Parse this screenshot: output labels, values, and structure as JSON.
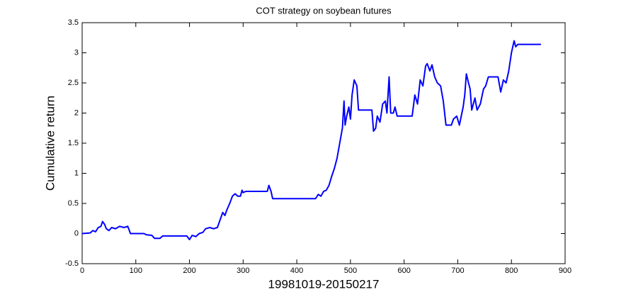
{
  "chart_data": {
    "type": "line",
    "title": "COT strategy on soybean futures",
    "x_label": "19981019-20150217",
    "y_label": "Cumulative return",
    "x": [
      0,
      15,
      20,
      25,
      30,
      35,
      38,
      42,
      45,
      50,
      55,
      62,
      70,
      78,
      85,
      88,
      90,
      115,
      120,
      130,
      135,
      145,
      150,
      195,
      200,
      205,
      212,
      218,
      225,
      230,
      238,
      245,
      252,
      258,
      262,
      266,
      270,
      275,
      280,
      285,
      290,
      295,
      298,
      300,
      305,
      345,
      348,
      352,
      355,
      435,
      440,
      445,
      450,
      455,
      460,
      465,
      470,
      475,
      480,
      485,
      488,
      490,
      493,
      497,
      500,
      503,
      507,
      512,
      515,
      540,
      543,
      547,
      550,
      555,
      560,
      565,
      568,
      572,
      575,
      580,
      583,
      587,
      615,
      620,
      625,
      630,
      635,
      640,
      643,
      648,
      652,
      657,
      662,
      668,
      673,
      678,
      688,
      692,
      698,
      703,
      710,
      713,
      716,
      720,
      723,
      726,
      732,
      736,
      742,
      748,
      752,
      757,
      775,
      780,
      785,
      790,
      795,
      800,
      805,
      808,
      812,
      855
    ],
    "values": [
      0,
      0.01,
      0.05,
      0.03,
      0.1,
      0.12,
      0.2,
      0.15,
      0.08,
      0.05,
      0.1,
      0.08,
      0.12,
      0.1,
      0.12,
      0.05,
      0,
      0,
      -0.02,
      -0.03,
      -0.08,
      -0.08,
      -0.04,
      -0.04,
      -0.1,
      -0.03,
      -0.05,
      0,
      0.02,
      0.08,
      0.1,
      0.08,
      0.1,
      0.25,
      0.35,
      0.3,
      0.4,
      0.5,
      0.62,
      0.66,
      0.62,
      0.62,
      0.72,
      0.68,
      0.7,
      0.7,
      0.8,
      0.7,
      0.58,
      0.58,
      0.65,
      0.62,
      0.7,
      0.72,
      0.8,
      0.95,
      1.08,
      1.25,
      1.5,
      1.75,
      2.2,
      1.8,
      1.95,
      2.1,
      1.9,
      2.3,
      2.55,
      2.45,
      2.05,
      2.05,
      1.7,
      1.75,
      1.95,
      1.85,
      2.15,
      2.2,
      2.0,
      2.6,
      2.0,
      2.0,
      2.1,
      1.95,
      1.95,
      2.3,
      2.15,
      2.55,
      2.45,
      2.78,
      2.82,
      2.7,
      2.8,
      2.6,
      2.5,
      2.45,
      2.2,
      1.8,
      1.8,
      1.9,
      1.95,
      1.8,
      2.1,
      2.3,
      2.65,
      2.5,
      2.4,
      2.05,
      2.25,
      2.05,
      2.15,
      2.4,
      2.45,
      2.6,
      2.6,
      2.35,
      2.55,
      2.5,
      2.7,
      3.0,
      3.2,
      3.1,
      3.14,
      3.14
    ],
    "color": "#0000ff",
    "xlim": [
      0,
      900
    ],
    "xticks": [
      0,
      100,
      200,
      300,
      400,
      500,
      600,
      700,
      800,
      900
    ],
    "ylim": [
      -0.5,
      3.5
    ],
    "yticks": [
      -0.5,
      0,
      0.5,
      1,
      1.5,
      2,
      2.5,
      3,
      3.5
    ]
  }
}
